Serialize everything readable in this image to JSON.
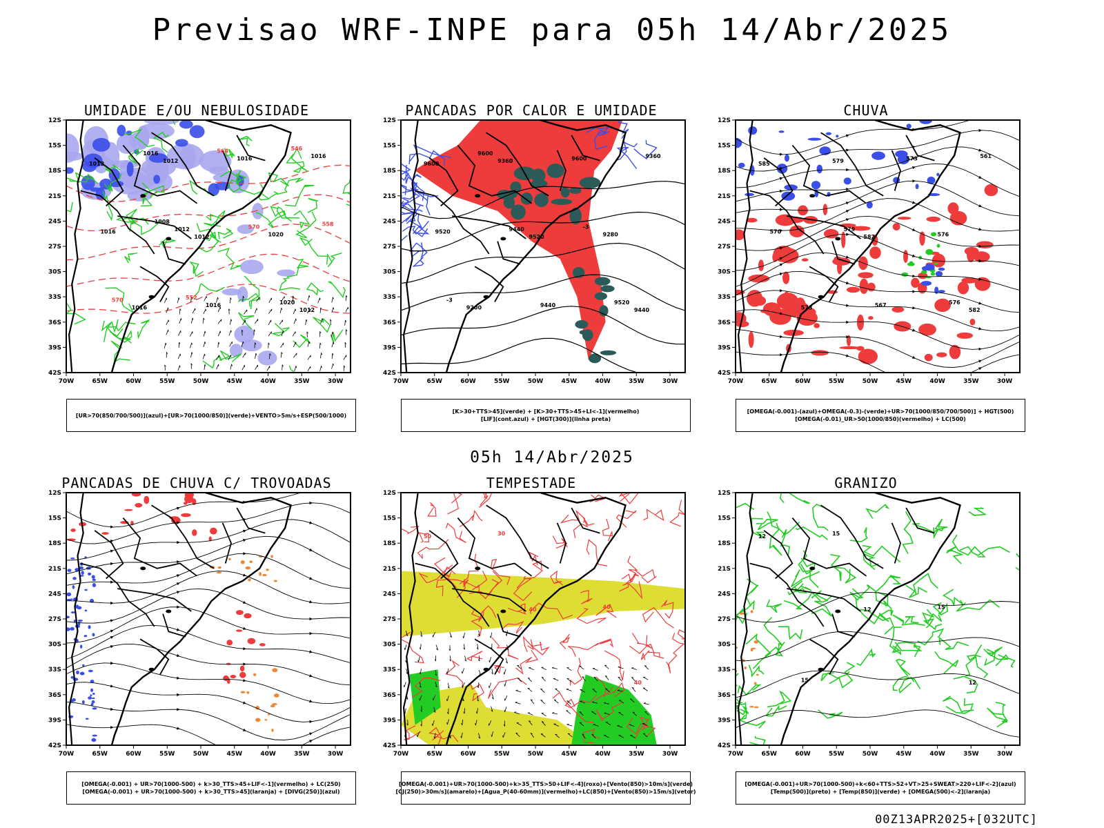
{
  "title": "Previsao WRF-INPE  para 05h 14/Abr/2025",
  "mid_time": "05h 14/Abr/2025",
  "footer_run": "00Z13APR2025+[032UTC]",
  "lat_ticks": [
    "12S",
    "15S",
    "18S",
    "21S",
    "24S",
    "27S",
    "30S",
    "33S",
    "36S",
    "39S",
    "42S"
  ],
  "lon_ticks": [
    "70W",
    "65W",
    "60W",
    "55W",
    "50W",
    "45W",
    "40W",
    "35W",
    "30W"
  ],
  "colors": {
    "blue": "#3a4ee8",
    "lightblue": "#a9a7ee",
    "green": "#22cc22",
    "red": "#ee3b3b",
    "darkteal": "#2b5a58",
    "orange": "#ee8833",
    "yellow": "#dddd33",
    "black": "#000000"
  },
  "panels": [
    {
      "title": "UMIDADE E/OU NEBULOSIDADE",
      "legend": [
        "[UR>70(850/700/500)](azul)+[UR>70(1000/850)](verde)+VENTO>5m/s+ESP(500/1000)"
      ],
      "labels": [
        "1012",
        "1012",
        "1012",
        "1012",
        "1020",
        "1016",
        "1016",
        "1016",
        "1016",
        "1016",
        "1012",
        "1020",
        "1016",
        "570",
        "570",
        "564",
        "558",
        "552",
        "546",
        "1008"
      ]
    },
    {
      "title": "PANCADAS POR CALOR E UMIDADE",
      "legend": [
        "[K>30+TTS>45](verde) + [K>30+TTS>45+LI<-1](vermelho)",
        "[LIF](cont.azul) + [HGT(300)](linha preta)"
      ],
      "labels": [
        "9600",
        "9520",
        "9440",
        "9360",
        "9280",
        "9200",
        "9600",
        "9520",
        "9440",
        "9360",
        "9440",
        "9520",
        "9600",
        "-3",
        "-3"
      ]
    },
    {
      "title": "CHUVA",
      "legend": [
        "[OMEGA(-0.001)-(azul)+OMEGA(-0.3)-(verde)+UR>70(1000/850/700/500)] + HGT(500)",
        "[OMEGA(-0.01)_UR>50(1000/850)(vermelho) + LC(500)"
      ],
      "labels": [
        "585",
        "582",
        "582",
        "579",
        "576",
        "573",
        "573",
        "570",
        "567",
        "561",
        "579",
        "576"
      ]
    },
    {
      "title": "PANCADAS DE CHUVA C/ TROVOADAS",
      "legend": [
        "[OMEGA(-0.001) + UR>70(1000-500) + k>30_TTS>45+LIF<-1](vermelho) + LC(250)",
        "[OMEGA(-0.001) + UR>70(1000-500) + k>30_TTS>45](laranja) + [DIVG(250)](azul)"
      ],
      "labels": []
    },
    {
      "title": "TEMPESTADE",
      "legend": [
        "[OMEGA(-0.001)+UR>70(1000-500)+k>35_TTS>50+LIF<-4](roxo)+[Vento(850)>10m/s](verde)",
        "[CJ(250)>30m/s](amarelo)+[Agua_P(40-60mm)](vermelho)+LC(850)+[Vento(850)>15m/s](vetor)"
      ],
      "labels": [
        "50",
        "40",
        "40",
        "30",
        "40"
      ]
    },
    {
      "title": "GRANIZO",
      "legend": [
        "[OMEGA(-0.001)+UR>70(1000-500)+k<60+TTS>52+VT>25+SWEAT>220+LIF<-2](azul)",
        "[Temp(500)](preto) + [Temp(850)](verde) + [OMEGA(500)<-2](laranja)"
      ],
      "labels": [
        "12",
        "12",
        "12",
        "15",
        "15",
        "15"
      ]
    }
  ]
}
